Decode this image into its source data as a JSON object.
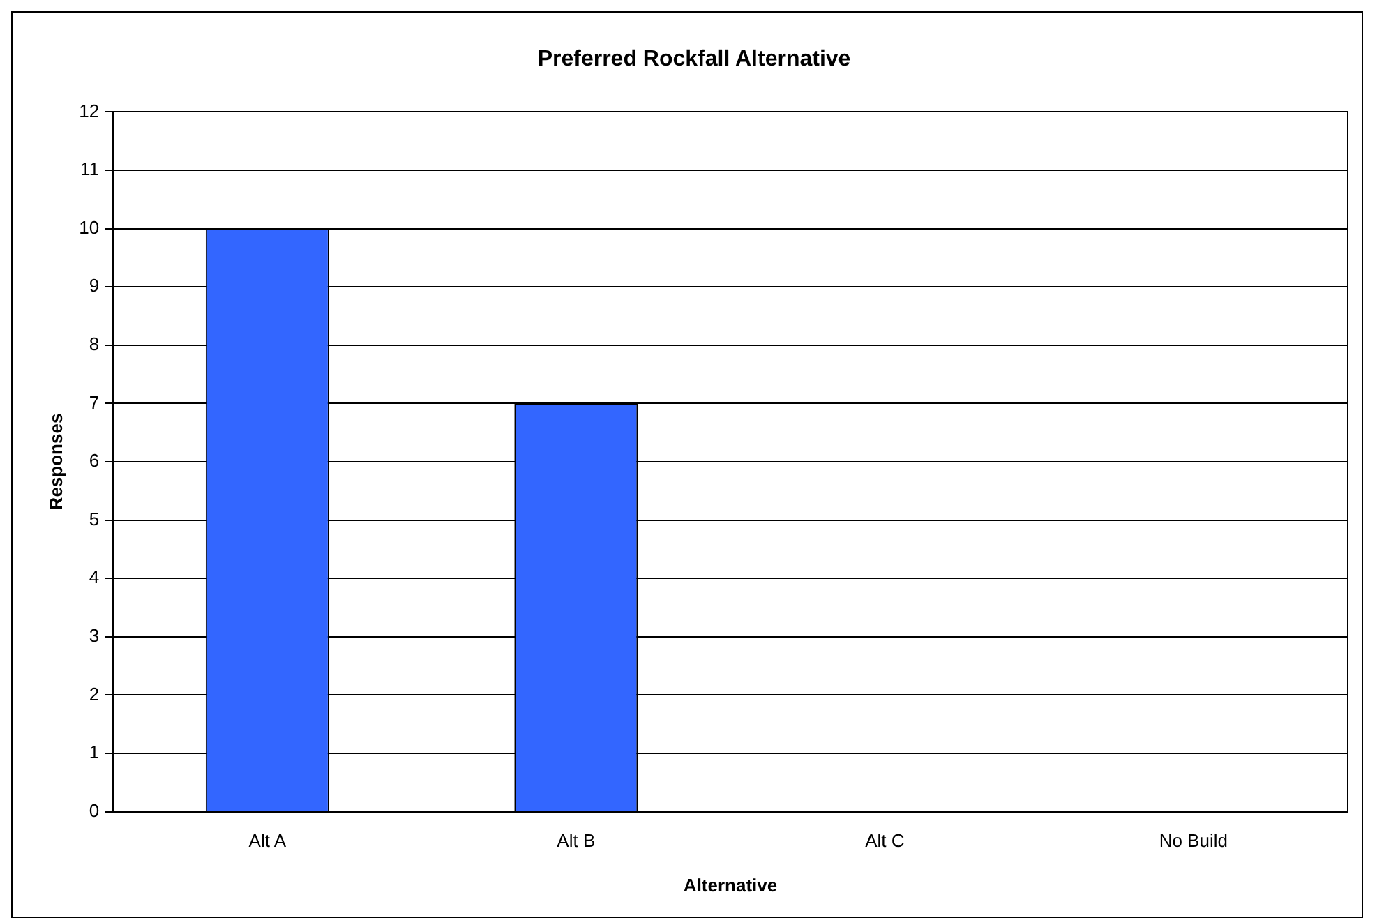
{
  "chart_data": {
    "type": "bar",
    "title": "Preferred Rockfall Alternative",
    "xlabel": "Alternative",
    "ylabel": "Responses",
    "categories": [
      "Alt A",
      "Alt B",
      "Alt C",
      "No Build"
    ],
    "values": [
      10,
      7,
      0,
      0
    ],
    "color": "#3366ff",
    "ylim": [
      0,
      12
    ],
    "yticks": [
      0,
      1,
      2,
      3,
      4,
      5,
      6,
      7,
      8,
      9,
      10,
      11,
      12
    ],
    "grid": "y",
    "legend": false
  }
}
